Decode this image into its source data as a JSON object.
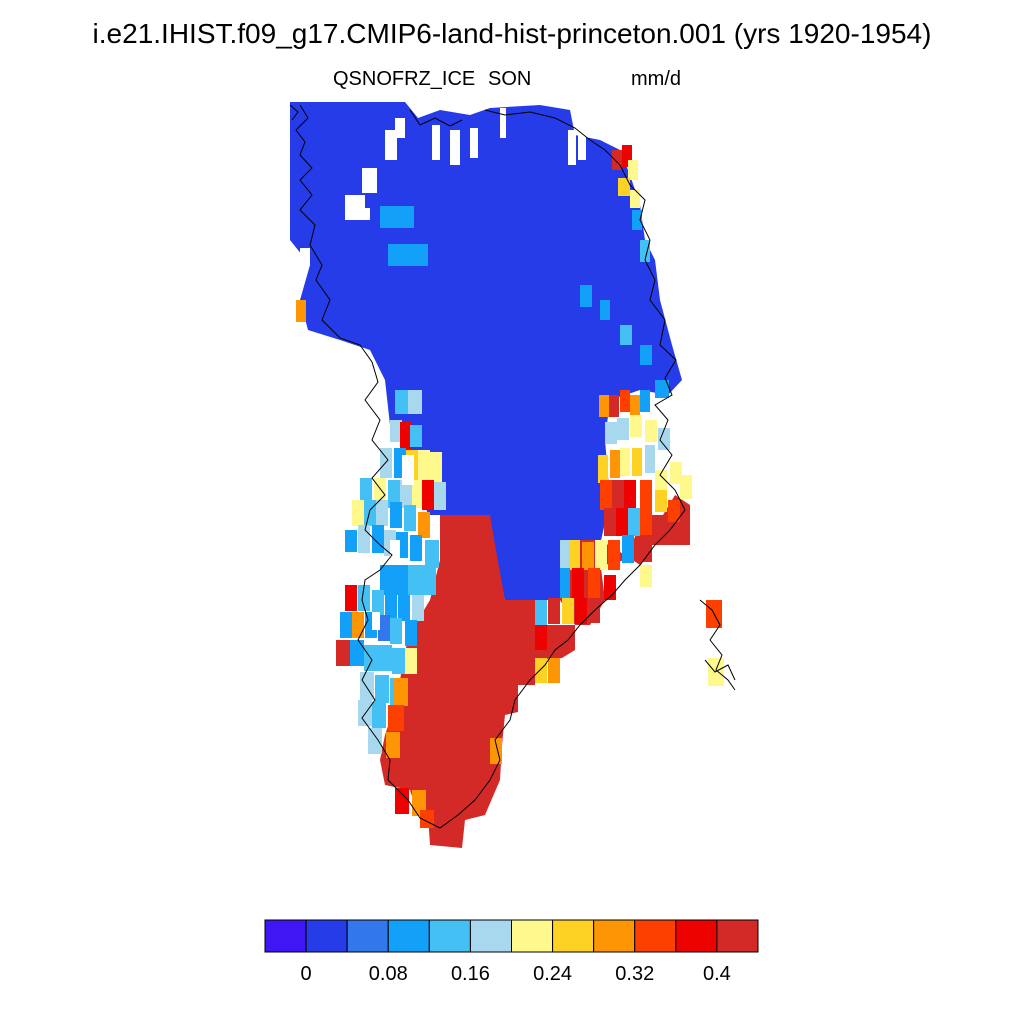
{
  "title": "i.e21.IHIST.f09_g17.CMIP6-land-hist-princeton.001 (yrs 1920-1954)",
  "subtitle": {
    "variable": "QSNOFRZ_ICE",
    "season": "SON",
    "units": "mm/d"
  },
  "colorbar": {
    "colors": [
      "#4016f5",
      "#263ce8",
      "#3278ec",
      "#12a0f8",
      "#44c0f4",
      "#a8d8ee",
      "#fff88c",
      "#fdd225",
      "#fd9505",
      "#fd4000",
      "#ed0200",
      "#d32a28"
    ],
    "tick_labels": [
      "0",
      "0.08",
      "0.16",
      "0.24",
      "0.32",
      "0.4"
    ],
    "levels": [
      0,
      0.04,
      0.08,
      0.12,
      0.16,
      0.2,
      0.24,
      0.28,
      0.32,
      0.36,
      0.4
    ]
  },
  "map_colors": {
    "ice": "#263ce8",
    "melt_south": "#d32a28",
    "coast": "#000000",
    "background": "#ffffff"
  }
}
